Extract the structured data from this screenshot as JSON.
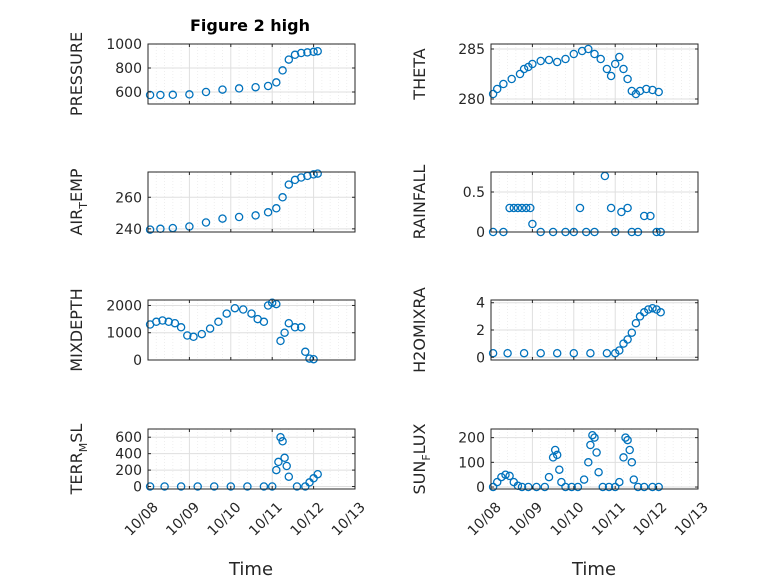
{
  "figure": {
    "title": "Figure 2 high",
    "marker_color": "#0072bd",
    "grid": true,
    "xlabel": "Time",
    "time_tick_labels": [
      "10/08",
      "10/09",
      "10/10",
      "10/11",
      "10/12",
      "10/13"
    ]
  },
  "chart_data": [
    {
      "type": "scatter",
      "ylabel": "PRESSURE",
      "ylabel_sub": "",
      "ylim": [
        500,
        1000
      ],
      "yticks": [
        600,
        800,
        1000
      ],
      "xlim": [
        0,
        5
      ],
      "series": [
        {
          "x": [
            0.05,
            0.3,
            0.6,
            1.0,
            1.4,
            1.8,
            2.2,
            2.6,
            2.9,
            3.1,
            3.25,
            3.4,
            3.55,
            3.7,
            3.85,
            4.0,
            4.1
          ],
          "y": [
            575,
            575,
            577,
            580,
            600,
            620,
            630,
            640,
            650,
            680,
            780,
            870,
            910,
            925,
            930,
            935,
            940
          ]
        }
      ]
    },
    {
      "type": "scatter",
      "ylabel": "THETA",
      "ylabel_sub": "",
      "ylim": [
        279.5,
        285.5
      ],
      "yticks": [
        280,
        285
      ],
      "xlim": [
        0,
        5
      ],
      "series": [
        {
          "x": [
            0.05,
            0.15,
            0.3,
            0.5,
            0.7,
            0.8,
            0.9,
            1.0,
            1.2,
            1.4,
            1.6,
            1.8,
            2.0,
            2.2,
            2.35,
            2.5,
            2.65,
            2.8,
            2.9,
            3.0,
            3.1,
            3.2,
            3.3,
            3.4,
            3.5,
            3.6,
            3.75,
            3.9,
            4.05
          ],
          "y": [
            280.5,
            281.0,
            281.5,
            282.0,
            282.5,
            283.0,
            283.2,
            283.5,
            283.8,
            283.9,
            283.7,
            284.0,
            284.5,
            284.8,
            285.0,
            284.5,
            284.0,
            283.0,
            282.3,
            283.5,
            284.2,
            283.0,
            282.0,
            280.8,
            280.5,
            280.8,
            281.0,
            280.9,
            280.7
          ]
        }
      ]
    },
    {
      "type": "scatter",
      "ylabel": "AIR",
      "ylabel_sub": "T",
      "ylabel_suffix": "EMP",
      "ylim": [
        238,
        276
      ],
      "yticks": [
        240,
        260
      ],
      "xlim": [
        0,
        5
      ],
      "series": [
        {
          "x": [
            0.05,
            0.3,
            0.6,
            1.0,
            1.4,
            1.8,
            2.2,
            2.6,
            2.9,
            3.1,
            3.25,
            3.4,
            3.55,
            3.7,
            3.85,
            4.0,
            4.1
          ],
          "y": [
            239.5,
            240,
            240.5,
            241.5,
            244,
            246.5,
            247.5,
            248.5,
            250.5,
            253,
            260,
            268,
            271,
            272.5,
            273.5,
            274.5,
            275
          ]
        }
      ]
    },
    {
      "type": "scatter",
      "ylabel": "RAINFALL",
      "ylabel_sub": "",
      "ylim": [
        0,
        0.75
      ],
      "yticks": [
        0,
        0.5
      ],
      "xlim": [
        0,
        5
      ],
      "series": [
        {
          "x": [
            0.05,
            0.3,
            0.45,
            0.55,
            0.65,
            0.75,
            0.85,
            0.95,
            1.0,
            1.2,
            1.5,
            1.8,
            2.0,
            2.15,
            2.3,
            2.5,
            2.75,
            2.9,
            3.0,
            3.15,
            3.3,
            3.4,
            3.55,
            3.7,
            3.85,
            4.0,
            4.1
          ],
          "y": [
            0,
            0,
            0.3,
            0.3,
            0.3,
            0.3,
            0.3,
            0.3,
            0.1,
            0,
            0,
            0,
            0,
            0.3,
            0,
            0,
            0.7,
            0.3,
            0,
            0.25,
            0.3,
            0,
            0,
            0.2,
            0.2,
            0,
            0
          ]
        }
      ]
    },
    {
      "type": "scatter",
      "ylabel": "MIXDEPTH",
      "ylabel_sub": "",
      "ylim": [
        0,
        2200
      ],
      "yticks": [
        0,
        1000,
        2000
      ],
      "xlim": [
        0,
        5
      ],
      "series": [
        {
          "x": [
            0.05,
            0.2,
            0.35,
            0.5,
            0.65,
            0.8,
            0.95,
            1.1,
            1.3,
            1.5,
            1.7,
            1.9,
            2.1,
            2.3,
            2.5,
            2.65,
            2.8,
            2.9,
            3.0,
            3.1,
            3.2,
            3.3,
            3.4,
            3.55,
            3.7,
            3.8,
            3.9,
            4.0
          ],
          "y": [
            1300,
            1400,
            1450,
            1400,
            1350,
            1200,
            900,
            850,
            950,
            1150,
            1400,
            1700,
            1900,
            1850,
            1700,
            1500,
            1400,
            2000,
            2100,
            2050,
            700,
            1000,
            1350,
            1200,
            1200,
            300,
            50,
            30
          ]
        }
      ]
    },
    {
      "type": "scatter",
      "ylabel": "H2OMIXRA",
      "ylabel_sub": "",
      "ylim": [
        -0.2,
        4.2
      ],
      "yticks": [
        0,
        2,
        4
      ],
      "xlim": [
        0,
        5
      ],
      "series": [
        {
          "x": [
            0.05,
            0.4,
            0.8,
            1.2,
            1.6,
            2.0,
            2.4,
            2.8,
            3.0,
            3.1,
            3.2,
            3.3,
            3.4,
            3.5,
            3.6,
            3.7,
            3.8,
            3.9,
            4.0,
            4.1
          ],
          "y": [
            0.3,
            0.3,
            0.3,
            0.3,
            0.3,
            0.3,
            0.3,
            0.3,
            0.3,
            0.5,
            1.0,
            1.3,
            1.8,
            2.5,
            3.0,
            3.3,
            3.5,
            3.6,
            3.5,
            3.3
          ]
        }
      ]
    },
    {
      "type": "scatter",
      "ylabel": "TERR",
      "ylabel_sub": "M",
      "ylabel_suffix": "SL",
      "ylim": [
        -30,
        700
      ],
      "yticks": [
        0,
        200,
        400,
        600
      ],
      "xlim": [
        0,
        5
      ],
      "series": [
        {
          "x": [
            0.05,
            0.4,
            0.8,
            1.2,
            1.6,
            2.0,
            2.4,
            2.8,
            3.0,
            3.1,
            3.15,
            3.2,
            3.25,
            3.3,
            3.35,
            3.4,
            3.6,
            3.8,
            3.9,
            4.0,
            4.1
          ],
          "y": [
            0,
            0,
            0,
            0,
            0,
            0,
            0,
            0,
            0,
            200,
            300,
            600,
            550,
            350,
            250,
            120,
            0,
            0,
            50,
            100,
            150
          ]
        }
      ]
    },
    {
      "type": "scatter",
      "ylabel": "SUN",
      "ylabel_sub": "F",
      "ylabel_suffix": "LUX",
      "ylim": [
        -8,
        235
      ],
      "yticks": [
        0,
        100,
        200
      ],
      "xlim": [
        0,
        5
      ],
      "series": [
        {
          "x": [
            0.05,
            0.15,
            0.25,
            0.35,
            0.45,
            0.55,
            0.65,
            0.75,
            0.9,
            1.1,
            1.3,
            1.4,
            1.5,
            1.55,
            1.6,
            1.65,
            1.7,
            1.8,
            1.95,
            2.1,
            2.25,
            2.35,
            2.4,
            2.45,
            2.5,
            2.55,
            2.6,
            2.7,
            2.85,
            3.0,
            3.1,
            3.2,
            3.25,
            3.3,
            3.35,
            3.4,
            3.45,
            3.55,
            3.7,
            3.9,
            4.05
          ],
          "y": [
            0,
            20,
            40,
            50,
            45,
            20,
            5,
            0,
            0,
            0,
            0,
            40,
            120,
            150,
            130,
            70,
            20,
            0,
            0,
            0,
            30,
            100,
            170,
            210,
            200,
            140,
            60,
            0,
            0,
            0,
            20,
            120,
            200,
            190,
            150,
            100,
            30,
            0,
            0,
            0,
            0
          ]
        }
      ]
    }
  ]
}
